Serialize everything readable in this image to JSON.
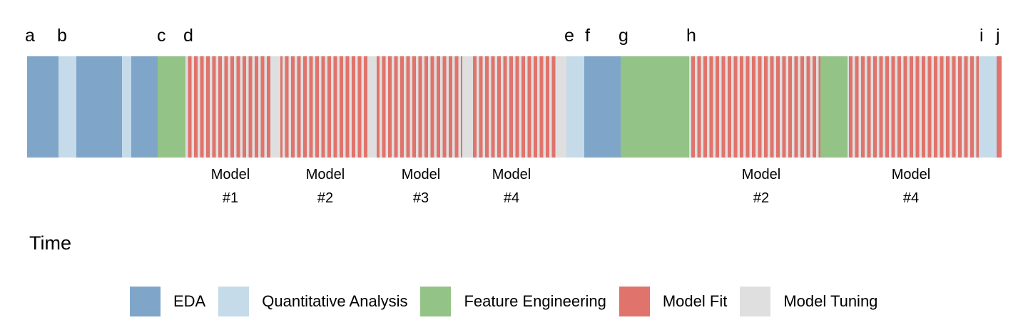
{
  "colors": {
    "eda": "#7FA5C9",
    "quantitative_analysis": "#C5DBEA",
    "feature_engineering": "#93C386",
    "model_fit": "#E0736B",
    "model_tuning": "#DFDFDF"
  },
  "letters": [
    "a",
    "b",
    "c",
    "d",
    "e",
    "f",
    "g",
    "h",
    "i",
    "j"
  ],
  "model_labels": [
    {
      "line1": "Model",
      "line2": "#1"
    },
    {
      "line1": "Model",
      "line2": "#2"
    },
    {
      "line1": "Model",
      "line2": "#3"
    },
    {
      "line1": "Model",
      "line2": "#4"
    },
    {
      "line1": "Model",
      "line2": "#2"
    },
    {
      "line1": "Model",
      "line2": "#4"
    }
  ],
  "time_label": "Time",
  "legend": [
    {
      "label": "EDA",
      "color": "#7FA5C9"
    },
    {
      "label": "Quantitative Analysis",
      "color": "#C5DBEA"
    },
    {
      "label": "Feature Engineering",
      "color": "#93C386"
    },
    {
      "label": "Model Fit",
      "color": "#E0736B"
    },
    {
      "label": "Model Tuning",
      "color": "#DFDFDF"
    }
  ]
}
